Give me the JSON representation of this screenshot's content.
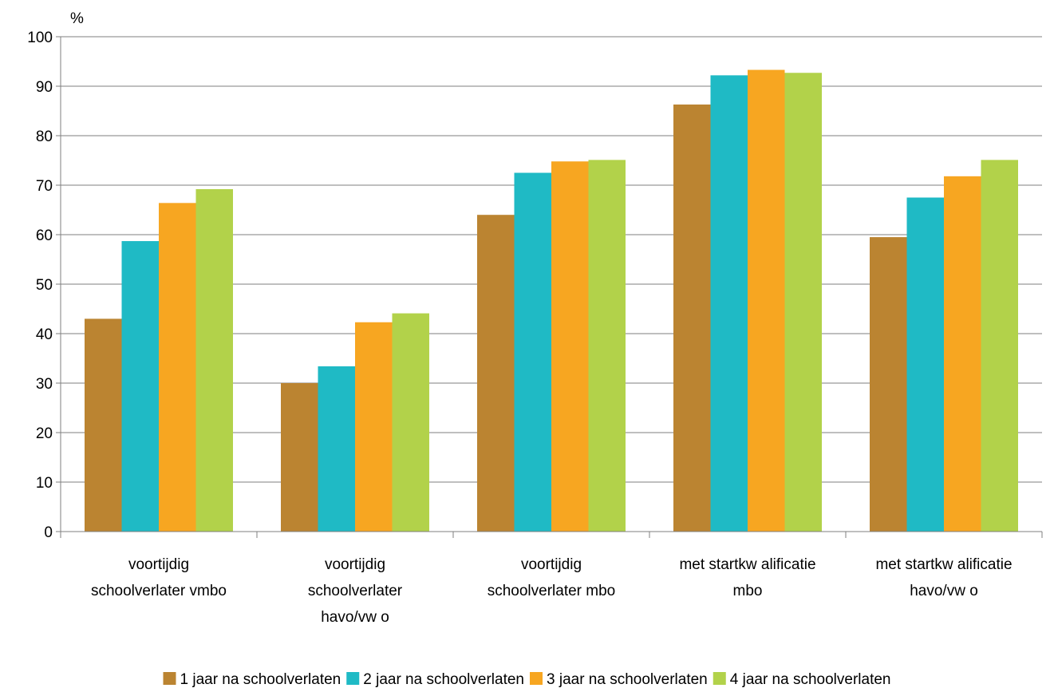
{
  "chart_data": {
    "type": "bar",
    "ylabel": "%",
    "ylim": [
      0,
      100
    ],
    "yticks": [
      "0",
      "10",
      "20",
      "30",
      "40",
      "50",
      "60",
      "70",
      "80",
      "90",
      "100"
    ],
    "grid": true,
    "legend_position": "bottom",
    "categories": [
      [
        "voortijdig",
        "schoolverlater vmbo"
      ],
      [
        "voortijdig",
        "schoolverlater",
        "havo/vw o"
      ],
      [
        "voortijdig",
        "schoolverlater mbo"
      ],
      [
        "met startkw alificatie",
        "mbo"
      ],
      [
        "met startkw alificatie",
        "havo/vw o"
      ]
    ],
    "series": [
      {
        "name": "1 jaar na schoolverlaten",
        "color": "#bb8431",
        "values": [
          43,
          30,
          64,
          86.3,
          59.5
        ]
      },
      {
        "name": "2 jaar na schoolverlaten",
        "color": "#1fbac5",
        "values": [
          58.7,
          33.4,
          72.5,
          92.2,
          67.5
        ]
      },
      {
        "name": "3 jaar na schoolverlaten",
        "color": "#f7a621",
        "values": [
          66.4,
          42.3,
          74.8,
          93.3,
          71.8
        ]
      },
      {
        "name": "4 jaar na schoolverlaten",
        "color": "#b2d24a",
        "values": [
          69.2,
          44.1,
          75.1,
          92.7,
          75.1
        ]
      }
    ]
  }
}
